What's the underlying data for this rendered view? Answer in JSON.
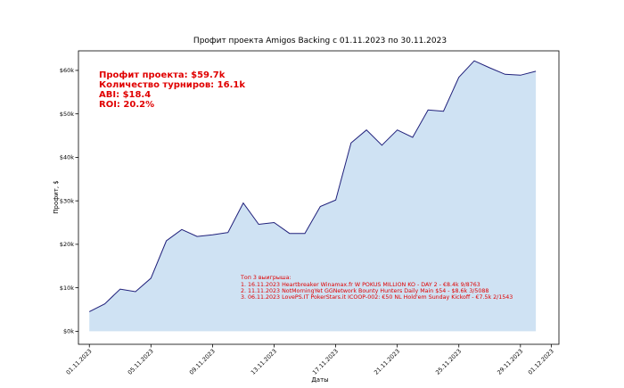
{
  "chart_data": {
    "type": "area",
    "title": "Профит проекта Amigos Backing с 01.11.2023 по 30.11.2023",
    "xlabel": "Даты",
    "ylabel": "Профит, $",
    "ylim": [
      -3000,
      64500
    ],
    "yticks": [
      0,
      10000,
      20000,
      30000,
      40000,
      50000,
      60000
    ],
    "ytick_labels": [
      "$0k",
      "$10k",
      "$20k",
      "$30k",
      "$40k",
      "$50k",
      "$60k"
    ],
    "xlim": [
      "2023-10-31T07:00",
      "2023-12-01T12:00"
    ],
    "xticks": [
      "2023-11-01",
      "2023-11-05",
      "2023-11-09",
      "2023-11-13",
      "2023-11-17",
      "2023-11-21",
      "2023-11-25",
      "2023-11-29",
      "2023-12-01"
    ],
    "xtick_labels": [
      "01.11.2023",
      "05.11.2023",
      "09.11.2023",
      "13.11.2023",
      "17.11.2023",
      "21.11.2023",
      "25.11.2023",
      "29.11.2023",
      "01.12.2023"
    ],
    "x": [
      "2023-11-01",
      "2023-11-02",
      "2023-11-03",
      "2023-11-04",
      "2023-11-05",
      "2023-11-06",
      "2023-11-07",
      "2023-11-08",
      "2023-11-09",
      "2023-11-10",
      "2023-11-11",
      "2023-11-12",
      "2023-11-13",
      "2023-11-14",
      "2023-11-15",
      "2023-11-16",
      "2023-11-17",
      "2023-11-18",
      "2023-11-19",
      "2023-11-20",
      "2023-11-21",
      "2023-11-22",
      "2023-11-23",
      "2023-11-24",
      "2023-11-25",
      "2023-11-26",
      "2023-11-27",
      "2023-11-28",
      "2023-11-29",
      "2023-11-30"
    ],
    "series": [
      {
        "values": [
          4500,
          6300,
          9700,
          9100,
          12200,
          20800,
          23400,
          21800,
          22200,
          22700,
          29500,
          24600,
          25000,
          22500,
          22500,
          28700,
          30200,
          43300,
          46300,
          42800,
          46300,
          44600,
          50900,
          50600,
          58400,
          62200,
          60600,
          59100,
          58900,
          59800
        ],
        "line_color": "#1f1f7a",
        "fill_color": "#cfe2f3"
      }
    ],
    "grid": false,
    "legend": "none",
    "stats_lines": [
      "Профит проекта:  $59.7k",
      "Количество турниров:  16.1k",
      "ABI:  $18.4",
      "ROI: 20.2%"
    ],
    "top_wins_lines": [
      "Топ 3 выигрыша:",
      "1. 16.11.2023 Heartbreaker Winamax.fr W POKUS MILLION KO - DAY 2 - €8.4k 9/8763",
      "2. 11.11.2023 NotMorningYet GGNetwork Bounty Hunters Daily Main $54 - $8.6k 3/5088",
      "3. 06.11.2023 LovePS.IT PokerStars.it ICOOP-002: €50 NL Hold'em Sunday Kickoff  - €7.5k 2/1543"
    ]
  }
}
